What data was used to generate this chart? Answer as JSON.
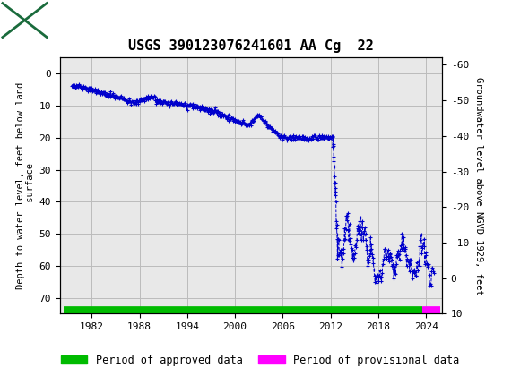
{
  "title": "USGS 390123076241601 AA Cg  22",
  "ylabel_left": "Depth to water level, feet below land\n surface",
  "ylabel_right": "Groundwater level above NGVD 1929, feet",
  "header_color": "#1a6b3c",
  "plot_bg": "#e8e8e8",
  "line_color": "#0000cc",
  "approved_color": "#00bb00",
  "provisional_color": "#ff00ff",
  "ylim_left": [
    75,
    -5
  ],
  "xlim": [
    1978,
    2026
  ],
  "xticks": [
    1982,
    1988,
    1994,
    2000,
    2006,
    2012,
    2018,
    2024
  ],
  "yticks_left": [
    0,
    10,
    20,
    30,
    40,
    50,
    60,
    70
  ],
  "yticks_right": [
    10,
    0,
    -10,
    -20,
    -30,
    -40,
    -50,
    -60
  ],
  "grid_color": "#bbbbbb",
  "approved_x_start": 1978.5,
  "approved_x_end": 2023.5,
  "provisional_x_start": 2023.5,
  "provisional_x_end": 2025.8,
  "bar_y": 74.0
}
